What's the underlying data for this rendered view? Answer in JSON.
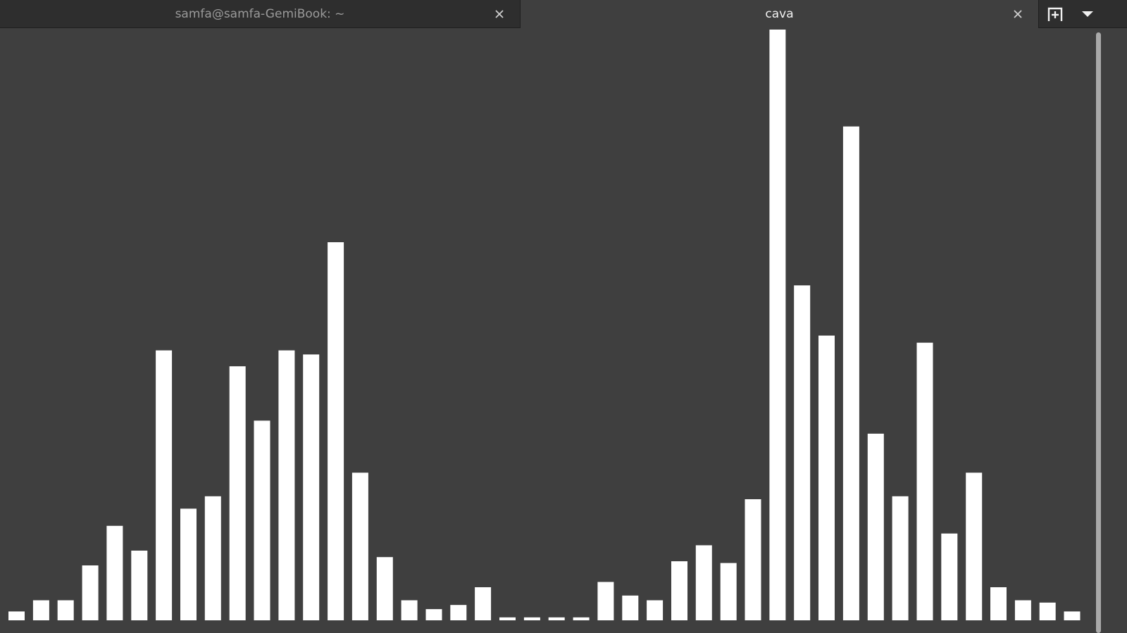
{
  "tabs": [
    {
      "title": "samfa@samfa-GemiBook: ~",
      "active": false
    },
    {
      "title": "cava",
      "active": true
    }
  ],
  "icons": {
    "close": "close-icon",
    "new_tab": "new-tab-icon",
    "menu": "chevron-down-icon"
  },
  "colors": {
    "background": "#3f3f3f",
    "bars": "#ffffff",
    "tabbar": "#2e2e2e"
  },
  "chart_data": {
    "type": "bar",
    "ylim": [
      0,
      1
    ],
    "values": [
      0.015,
      0.034,
      0.034,
      0.093,
      0.16,
      0.118,
      0.457,
      0.189,
      0.21,
      0.43,
      0.338,
      0.457,
      0.45,
      0.64,
      0.25,
      0.107,
      0.034,
      0.019,
      0.026,
      0.056,
      0.005,
      0.005,
      0.005,
      0.005,
      0.065,
      0.042,
      0.034,
      0.1,
      0.127,
      0.097,
      0.205,
      1.0,
      0.567,
      0.482,
      0.836,
      0.316,
      0.21,
      0.47,
      0.147,
      0.25,
      0.056,
      0.034,
      0.03,
      0.015
    ]
  }
}
